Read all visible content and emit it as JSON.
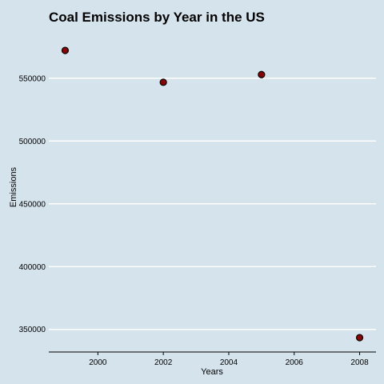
{
  "chart_data": {
    "type": "scatter",
    "title": "Coal Emissions by Year in the US",
    "xlabel": "Years",
    "ylabel": "Emissions",
    "x": [
      1999,
      2002,
      2005,
      2008
    ],
    "y": [
      572126,
      546789,
      552881,
      343432
    ],
    "xlim": [
      1998.5,
      2008.5
    ],
    "ylim": [
      332000,
      590000
    ],
    "x_ticks": [
      2000,
      2002,
      2004,
      2006,
      2008
    ],
    "x_tick_labels": [
      "2000",
      "2002",
      "2004",
      "2006",
      "2008"
    ],
    "y_ticks": [
      350000,
      400000,
      450000,
      500000,
      550000
    ],
    "y_tick_labels": [
      "350000",
      "400000",
      "450000",
      "500000",
      "550000"
    ],
    "grid": "horizontal",
    "point_fill": "#8b0000",
    "point_stroke": "#000000",
    "background": "#d5e3ec",
    "gridline_color": "#ffffff"
  }
}
